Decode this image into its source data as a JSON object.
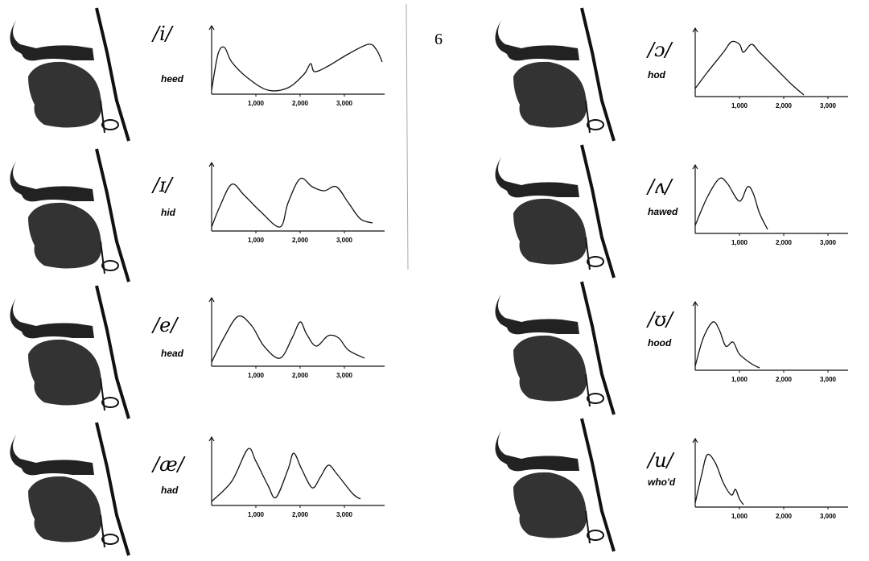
{
  "page_number": "6",
  "panels": [
    {
      "symbol": "/i/",
      "word": "heed",
      "ticks": [
        {
          "value": 1000,
          "label": "1,000"
        },
        {
          "value": 2000,
          "label": "2,000"
        },
        {
          "value": 3000,
          "label": "3,000"
        }
      ]
    },
    {
      "symbol": "/ɪ/",
      "word": "hid",
      "ticks": [
        {
          "value": 1000,
          "label": "1,000"
        },
        {
          "value": 2000,
          "label": "2,000"
        },
        {
          "value": 3000,
          "label": "3,000"
        }
      ]
    },
    {
      "symbol": "/e/",
      "word": "head",
      "ticks": [
        {
          "value": 1000,
          "label": "1,000"
        },
        {
          "value": 2000,
          "label": "2,000"
        },
        {
          "value": 3000,
          "label": "3,000"
        }
      ]
    },
    {
      "symbol": "/æ/",
      "word": "had",
      "ticks": [
        {
          "value": 1000,
          "label": "1,000"
        },
        {
          "value": 2000,
          "label": "2,000"
        },
        {
          "value": 3000,
          "label": "3,000"
        }
      ]
    },
    {
      "symbol": "/ɔ/",
      "word": "hod",
      "ticks": [
        {
          "value": 1000,
          "label": "1,000"
        },
        {
          "value": 2000,
          "label": "2,000"
        },
        {
          "value": 3000,
          "label": "3,000"
        }
      ]
    },
    {
      "symbol": "/ʌ/",
      "word": "hawed",
      "ticks": [
        {
          "value": 1000,
          "label": "1,000"
        },
        {
          "value": 2000,
          "label": "2,000"
        },
        {
          "value": 3000,
          "label": "3,000"
        }
      ]
    },
    {
      "symbol": "/ʊ/",
      "word": "hood",
      "ticks": [
        {
          "value": 1000,
          "label": "1,000"
        },
        {
          "value": 2000,
          "label": "2,000"
        },
        {
          "value": 3000,
          "label": "3,000"
        }
      ]
    },
    {
      "symbol": "/u/",
      "word": "who'd",
      "ticks": [
        {
          "value": 1000,
          "label": "1,000"
        },
        {
          "value": 2000,
          "label": "2,000"
        },
        {
          "value": 3000,
          "label": "3,000"
        }
      ]
    }
  ]
}
